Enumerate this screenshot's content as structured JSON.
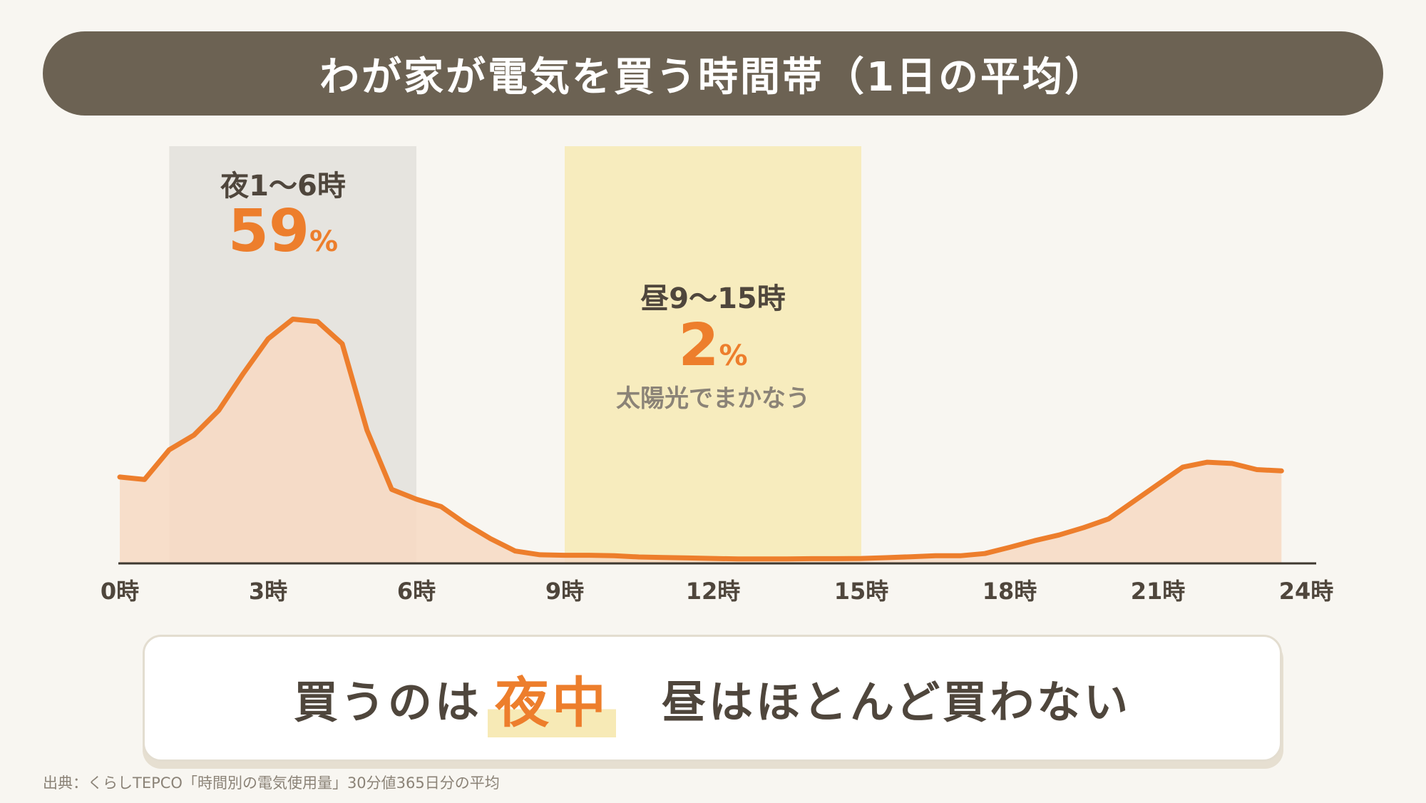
{
  "title": "わが家が電気を買う時間帯（1日の平均）",
  "night_band": {
    "label": "夜1〜6時",
    "value": "59",
    "unit": "%",
    "range": [
      1,
      6
    ],
    "color": "#e6e4df"
  },
  "day_band": {
    "label": "昼9〜15時",
    "value": "2",
    "unit": "%",
    "note": "太陽光でまかなう",
    "range": [
      9,
      15
    ],
    "color": "#f7ecbe"
  },
  "summary": {
    "part1": "買うのは",
    "highlight": "夜中",
    "part2": "昼はほとんど買わない"
  },
  "source": "出典：くらしTEPCO「時間別の電気使用量」30分値365日分の平均",
  "colors": {
    "line": "#ed7e2c",
    "fill": "#f7d9c3",
    "accent": "#ed7e2c",
    "title_bg": "#6c6253"
  },
  "chart_data": {
    "type": "area",
    "title": "わが家が電気を買う時間帯（1日の平均）",
    "xlabel": "",
    "ylabel": "",
    "xlim": [
      0,
      24
    ],
    "x_ticks": [
      0,
      3,
      6,
      9,
      12,
      15,
      18,
      21,
      24
    ],
    "x_tick_labels": [
      "0時",
      "3時",
      "6時",
      "9時",
      "12時",
      "15時",
      "18時",
      "21時",
      "24時"
    ],
    "y_axis": "none",
    "ylim": [
      0,
      100
    ],
    "grid": false,
    "x": [
      0,
      0.5,
      1,
      1.5,
      2,
      2.5,
      3,
      3.5,
      4,
      4.5,
      5,
      5.5,
      6,
      6.5,
      7,
      7.5,
      8,
      8.5,
      9,
      9.5,
      10,
      10.5,
      11,
      11.5,
      12,
      12.5,
      13,
      13.5,
      14,
      14.5,
      15,
      15.5,
      16,
      16.5,
      17,
      17.5,
      18,
      18.5,
      19,
      19.5,
      20,
      20.5,
      21,
      21.5,
      22,
      22.5,
      23,
      23.5
    ],
    "values": [
      35,
      34,
      46,
      52,
      62,
      77,
      91,
      99,
      98,
      89,
      54,
      30,
      26,
      23,
      16,
      10,
      5,
      3.5,
      3.3,
      3.3,
      3.1,
      2.6,
      2.4,
      2.2,
      2,
      1.8,
      1.8,
      1.8,
      1.9,
      1.9,
      2,
      2.3,
      2.7,
      3.1,
      3.1,
      4,
      6.5,
      9.2,
      11.5,
      14.5,
      18,
      25,
      32,
      39,
      41,
      40.5,
      38,
      37.5
    ]
  }
}
